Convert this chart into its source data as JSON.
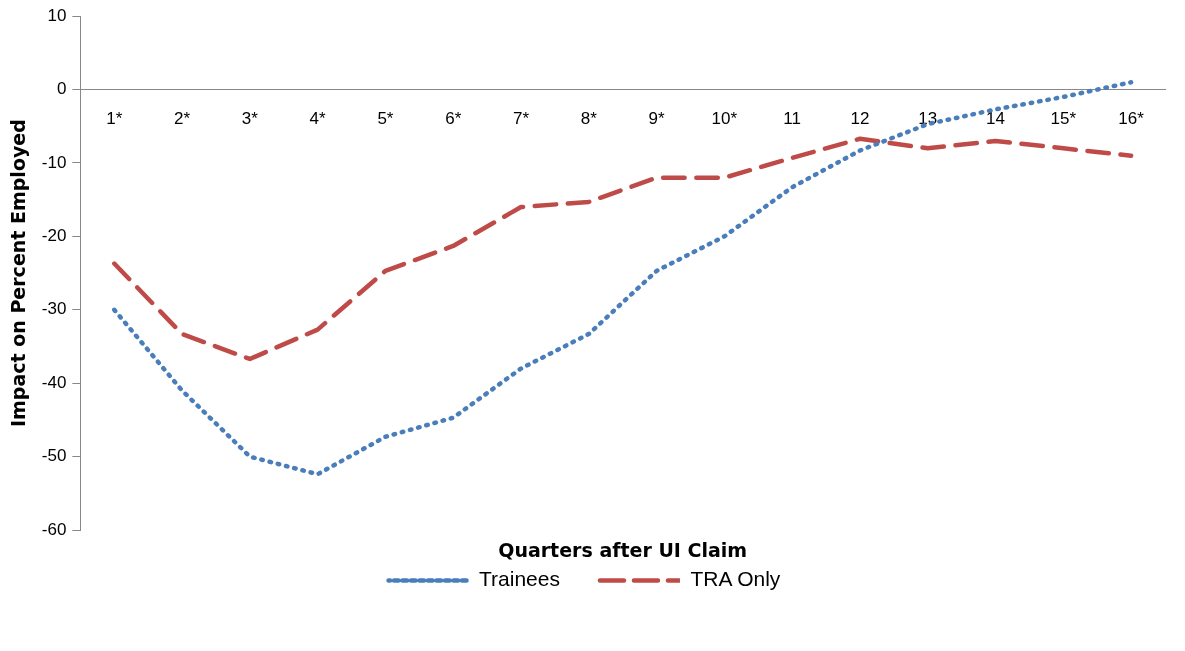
{
  "chart_data": {
    "type": "line",
    "xlabel": "Quarters after UI Claim",
    "ylabel": "Impact on Percent Employed",
    "categories": [
      "1*",
      "2*",
      "3*",
      "4*",
      "5*",
      "6*",
      "7*",
      "8*",
      "9*",
      "10*",
      "11",
      "12",
      "13",
      "14",
      "15*",
      "16*"
    ],
    "series": [
      {
        "name": "Trainees",
        "color": "#4a7ebb",
        "line_style": "dotted",
        "values": [
          -30,
          -41,
          -50,
          -52.4,
          -47.3,
          -44.7,
          -38,
          -33.3,
          -24.7,
          -20,
          -13.3,
          -8.3,
          -4.7,
          -2.7,
          -1,
          1
        ]
      },
      {
        "name": "TRA Only",
        "color": "#be4b48",
        "line_style": "dashed",
        "values": [
          -23.7,
          -33.3,
          -36.7,
          -32.7,
          -24.7,
          -21.3,
          -16,
          -15.3,
          -12,
          -12,
          -9.3,
          -6.7,
          -8,
          -7,
          -8,
          -9
        ]
      }
    ],
    "ylim": [
      -60,
      10
    ],
    "yticks": [
      -60,
      -50,
      -40,
      -30,
      -20,
      -10,
      0,
      10
    ],
    "grid": false,
    "legend": "bottom",
    "marker": "none"
  }
}
